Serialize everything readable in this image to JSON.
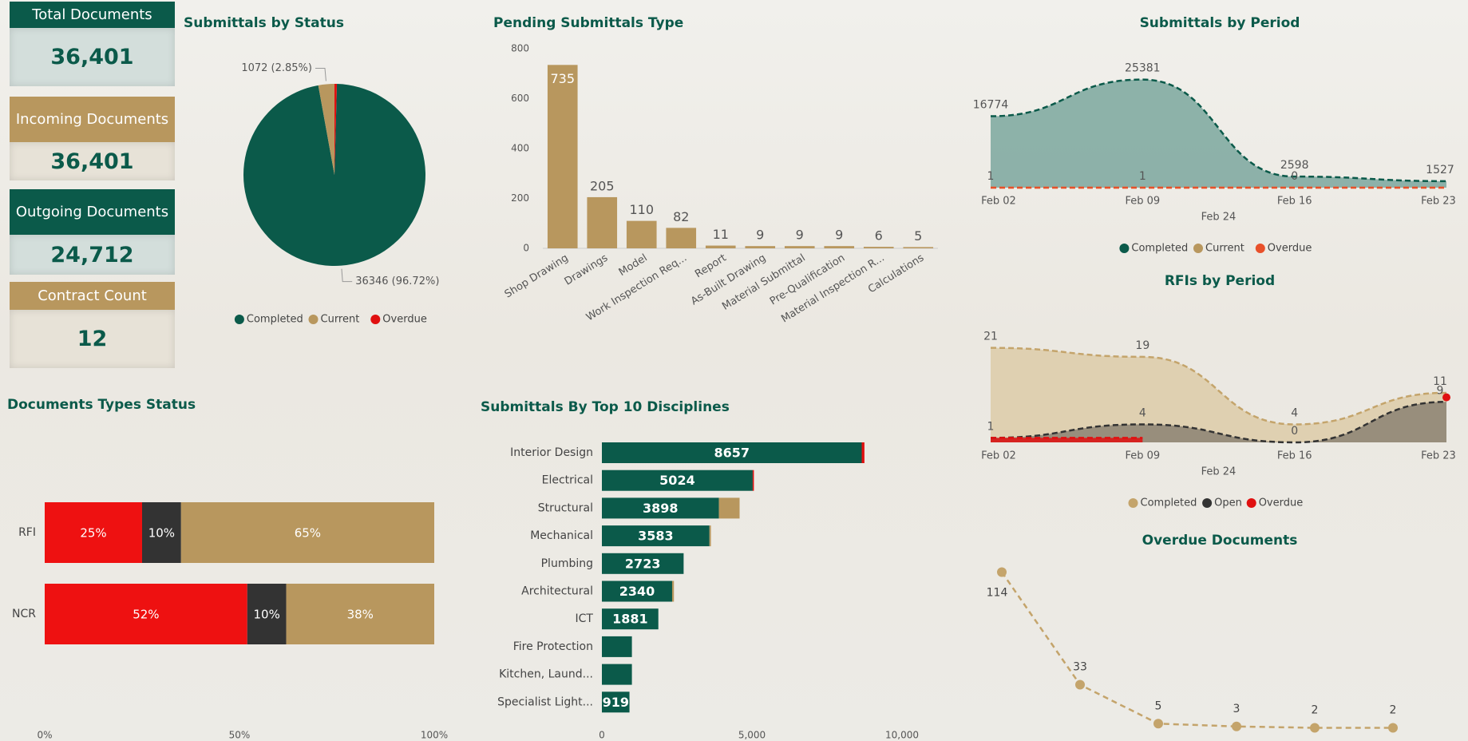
{
  "kpis": [
    {
      "label": "Total Documents",
      "value": "36,401",
      "color": "#0b5a4a",
      "value_bg": "#d3dedb"
    },
    {
      "label": "Incoming Documents",
      "value": "36,401",
      "color": "#b8975e",
      "value_bg": "#e7e2d7"
    },
    {
      "label": "Outgoing Documents",
      "value": "24,712",
      "color": "#0b5a4a",
      "value_bg": "#d3dedb"
    },
    {
      "label": "Contract Count",
      "value": "12",
      "color": "#b8975e",
      "value_bg": "#e7e2d7"
    }
  ],
  "chart_data": [
    {
      "type": "pie",
      "title": "Submittals by Status",
      "categories": [
        "Completed",
        "Current",
        "Overdue"
      ],
      "values": [
        36346,
        1072,
        161
      ],
      "value_labels": [
        "36346 (96.72%)",
        "1072 (2.85%)",
        null
      ],
      "colors": [
        "#0b5a4a",
        "#b8975e",
        "#e01010"
      ]
    },
    {
      "type": "bar",
      "title": "Pending Submittals Type",
      "categories": [
        "Shop Drawing",
        "Drawings",
        "Model",
        "Work Inspection Req...",
        "Report",
        "As-Built Drawing",
        "Material Submittal",
        "Pre-Qualification",
        "Material Inspection R...",
        "Calculations"
      ],
      "values": [
        735,
        205,
        110,
        82,
        11,
        9,
        9,
        9,
        6,
        5
      ],
      "color": "#b8975e",
      "ylim": [
        0,
        800
      ],
      "yticks": [
        0,
        200,
        400,
        600,
        800
      ]
    },
    {
      "type": "area",
      "title": "Submittals by Period",
      "x_label": "Feb 24",
      "categories": [
        "Feb 02",
        "Feb 09",
        "Feb 16",
        "Feb 23"
      ],
      "ylim": [
        0,
        30000
      ],
      "series": [
        {
          "name": "Completed",
          "color": "#0b5a4a",
          "fill_color": "#7ba79d",
          "values": [
            16774,
            25381,
            2598,
            1527
          ]
        },
        {
          "name": "Current",
          "color": "#b8975e",
          "values": [
            1,
            1,
            0,
            0
          ],
          "value_labels": [
            "1",
            "1",
            "0",
            null
          ]
        },
        {
          "name": "Overdue",
          "color": "#e8502a",
          "values": [
            0,
            0,
            0,
            0
          ],
          "data_labels": false
        }
      ]
    },
    {
      "type": "area",
      "title": "RFIs by Period",
      "x_label": "Feb 24",
      "categories": [
        "Feb 02",
        "Feb 09",
        "Feb 16",
        "Feb 23"
      ],
      "ylim": [
        0,
        22
      ],
      "series": [
        {
          "name": "Completed",
          "color": "#c4a46b",
          "fill_color": "#ddcba8",
          "values": [
            21,
            19,
            4,
            11
          ]
        },
        {
          "name": "Open",
          "color": "#333333",
          "fill_color": "#8c8273",
          "values": [
            1,
            4,
            0,
            9
          ]
        },
        {
          "name": "Overdue",
          "color": "#e01010",
          "fill_color": "#e01010",
          "values": [
            1,
            1,
            null,
            10
          ],
          "data_labels": false
        }
      ]
    },
    {
      "type": "line",
      "title": "Overdue Documents",
      "categories": [
        null,
        null,
        null,
        null,
        null,
        null
      ],
      "values": [
        114,
        33,
        5,
        3,
        2,
        2
      ],
      "color": "#c4a46b",
      "ylim": [
        0,
        120
      ]
    },
    {
      "type": "barh",
      "title": "Documents Types Status",
      "categories": [
        "RFI",
        "NCR"
      ],
      "series": [
        {
          "color": "#ee1111",
          "values": [
            25,
            52
          ],
          "value_labels": [
            "25%",
            "52%"
          ]
        },
        {
          "color": "#333333",
          "values": [
            10,
            10
          ],
          "value_labels": [
            "10%",
            "10%"
          ]
        },
        {
          "color": "#b8975e",
          "values": [
            65,
            38
          ],
          "value_labels": [
            "65%",
            "38%"
          ]
        }
      ],
      "xlim": [
        0,
        100
      ],
      "xticks": [
        {
          "value": 0,
          "label": "0%"
        },
        {
          "value": 50,
          "label": "50%"
        },
        {
          "value": 100,
          "label": "100%"
        }
      ]
    },
    {
      "type": "barh",
      "title": "Submittals By Top 10 Disciplines",
      "categories": [
        "Interior Design",
        "Electrical",
        "Structural",
        "Mechanical",
        "Plumbing",
        "Architectural",
        "ICT",
        "Fire Protection",
        "Kitchen, Laund...",
        "Specialist Light..."
      ],
      "series": [
        {
          "color": "#0b5a4a",
          "values": [
            8657,
            5024,
            3898,
            3583,
            2723,
            2340,
            1881,
            1000,
            1000,
            919
          ],
          "value_labels": [
            "8657",
            "5024",
            "3898",
            "3583",
            "2723",
            "2340",
            "1881",
            null,
            null,
            "919"
          ]
        },
        {
          "color": "#b8975e",
          "values": [
            0,
            0,
            690,
            50,
            0,
            60,
            0,
            0,
            0,
            0
          ],
          "data_labels": false
        },
        {
          "color": "#e01010",
          "values": [
            90,
            40,
            0,
            0,
            0,
            0,
            0,
            0,
            0,
            0
          ],
          "data_labels": false
        }
      ],
      "xlim": [
        0,
        11000
      ],
      "xticks": [
        0,
        {
          "value": 5000,
          "label": "5,000"
        },
        {
          "value": 10000,
          "label": "10,000"
        }
      ]
    }
  ]
}
